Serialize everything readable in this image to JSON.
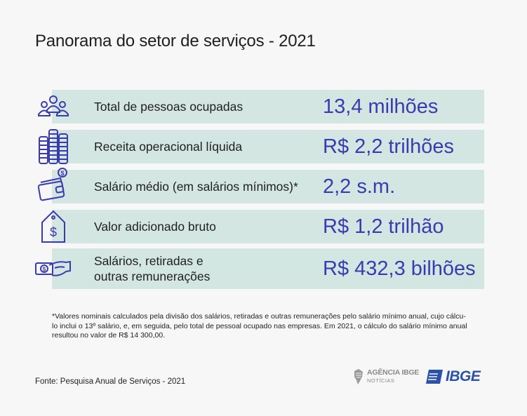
{
  "title": "Panorama do setor de serviços - 2021",
  "rows": [
    {
      "icon": "people-icon",
      "label": "Total de pessoas ocupadas",
      "value": "13,4 milhões"
    },
    {
      "icon": "coins-stack-icon",
      "label": "Receita operacional líquida",
      "value": "R$ 2,2 trilhões"
    },
    {
      "icon": "wallet-icon",
      "label": "Salário médio (em salários mínimos)*",
      "value": "2,2 s.m."
    },
    {
      "icon": "price-tag-icon",
      "label": "Valor adicionado bruto",
      "value": "R$ 1,2 trilhão"
    },
    {
      "icon": "hand-money-icon",
      "label_line1": "Salários, retiradas e",
      "label_line2": "outras remunerações",
      "value": "R$ 432,3 bilhões"
    }
  ],
  "footnote": {
    "line1": "*Valores nominais calculados pela divisão dos salários, retiradas e outras remunerações pelo salário mínimo anual, cujo cálcu-",
    "line2": "lo inclui o 13º salário, e, em seguida, pelo total de pessoal ocupado nas empresas. Em 2021, o cálculo do salário mínimo anual",
    "line3": "resultou no valor de R$ 14 300,00."
  },
  "source": "Fonte: Pesquisa Anual de Serviços - 2021",
  "logos": {
    "agencia_line1": "AGÊNCIA IBGE",
    "agencia_line2": "NOTÍCIAS",
    "ibge": "IBGE"
  },
  "colors": {
    "row_bg": "#d3e6e2",
    "value_text": "#3b3bb1",
    "icon_stroke": "#3b3bb1",
    "ibge_blue": "#2a53a8"
  }
}
